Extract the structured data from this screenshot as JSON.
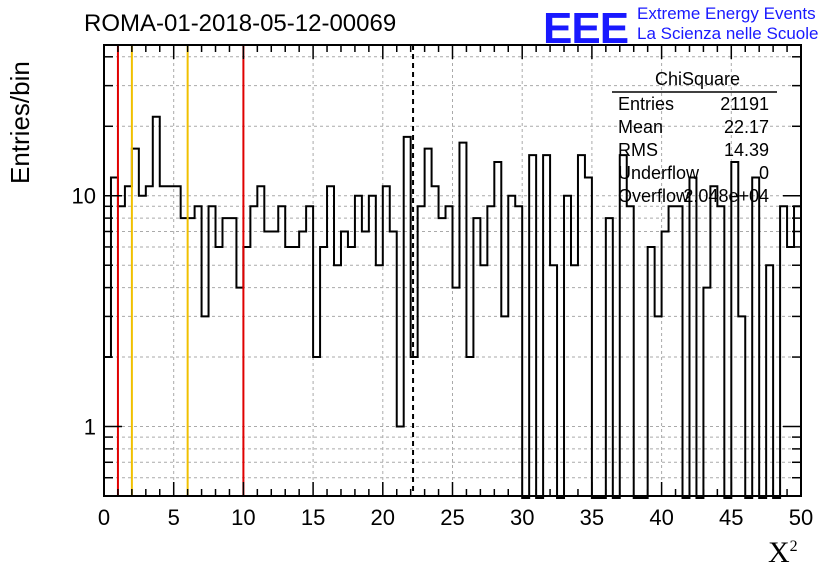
{
  "header": {
    "title": "ROMA-01-2018-05-12-00069",
    "logo_text": "EEE",
    "logo_line1": "Extreme Energy Events",
    "logo_line2": "La Scienza nelle Scuole"
  },
  "stats_box": {
    "name": "ChiSquare",
    "rows": [
      {
        "label": "Entries",
        "value": "21191"
      },
      {
        "label": "Mean",
        "value": "22.17"
      },
      {
        "label": "RMS",
        "value": "14.39"
      },
      {
        "label": "Underflow",
        "value": "0"
      },
      {
        "label": "Overflow",
        "value": "2.048e+04"
      }
    ]
  },
  "colors": {
    "red_line": "#e00000",
    "yellow_line": "#f0c000",
    "histogram": "#000000",
    "grid": "#aaaaaa",
    "logo": "#1919ff"
  },
  "chart_data": {
    "type": "histogram",
    "xlabel": "X²",
    "ylabel": "Entries/bin",
    "xlim": [
      0,
      50
    ],
    "ylim": [
      0.5,
      45
    ],
    "yscale": "log",
    "grid": true,
    "bin_width": 0.5,
    "x_ticks": [
      0,
      5,
      10,
      15,
      20,
      25,
      30,
      35,
      40,
      45,
      50
    ],
    "y_tick_labels": [
      1,
      10
    ],
    "counts": [
      2,
      12,
      9,
      11,
      16,
      10,
      11,
      22,
      11,
      11,
      11,
      8,
      8,
      9,
      3,
      9,
      6,
      8,
      8,
      4,
      6,
      9,
      11,
      7,
      7,
      9,
      6,
      6,
      7,
      9,
      2,
      6,
      11,
      5,
      7,
      6,
      10,
      7,
      10,
      5,
      11,
      7,
      1,
      18,
      2,
      9,
      16,
      11,
      8,
      9,
      4,
      17,
      2,
      8,
      5,
      9,
      14,
      3,
      10,
      9,
      0,
      15,
      0,
      15,
      5,
      0,
      10,
      5,
      15,
      12,
      0,
      0,
      8,
      0,
      15,
      9,
      0,
      0,
      6,
      3,
      7,
      9,
      9,
      0,
      12,
      0,
      4,
      11,
      9,
      0,
      14,
      3,
      0,
      12,
      0,
      5,
      0,
      9,
      6,
      9
    ],
    "vertical_lines": [
      {
        "x": 1,
        "color": "red",
        "style": "solid"
      },
      {
        "x": 2,
        "color": "yellow",
        "style": "solid"
      },
      {
        "x": 6,
        "color": "yellow",
        "style": "solid"
      },
      {
        "x": 10,
        "color": "red",
        "style": "solid"
      },
      {
        "x": 22.17,
        "color": "black",
        "style": "dashed"
      }
    ]
  }
}
